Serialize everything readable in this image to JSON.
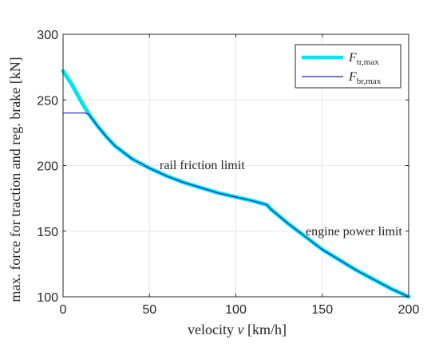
{
  "chart_data": {
    "type": "line",
    "title": "",
    "xlabel": "velocity v [km/h]",
    "ylabel": "max. force for traction and reg. brake [kN]",
    "xlim": [
      0,
      200
    ],
    "ylim": [
      100,
      300
    ],
    "xticks": [
      "0",
      "50",
      "100",
      "150",
      "200"
    ],
    "yticks": [
      "100",
      "150",
      "200",
      "250",
      "300"
    ],
    "grid": true,
    "legend_position": "top-right",
    "series": [
      {
        "name": "F_tr,max",
        "color": "#00e5ee",
        "points": [
          [
            0,
            272
          ],
          [
            5,
            262
          ],
          [
            10,
            250
          ],
          [
            15,
            239
          ],
          [
            20,
            230
          ],
          [
            25,
            222
          ],
          [
            30,
            215
          ],
          [
            40,
            205
          ],
          [
            50,
            198
          ],
          [
            60,
            192
          ],
          [
            70,
            187
          ],
          [
            80,
            183
          ],
          [
            90,
            179
          ],
          [
            100,
            176
          ],
          [
            110,
            173
          ],
          [
            118,
            170
          ],
          [
            120,
            167
          ],
          [
            130,
            156
          ],
          [
            140,
            146
          ],
          [
            150,
            136
          ],
          [
            160,
            128
          ],
          [
            170,
            120
          ],
          [
            180,
            113
          ],
          [
            190,
            106
          ],
          [
            200,
            100
          ]
        ]
      },
      {
        "name": "F_br,max",
        "color": "#1f1fbf",
        "points": [
          [
            0,
            240
          ],
          [
            13,
            240
          ],
          [
            15,
            239
          ],
          [
            20,
            230
          ],
          [
            25,
            222
          ],
          [
            30,
            215
          ],
          [
            40,
            205
          ],
          [
            50,
            198
          ],
          [
            60,
            192
          ],
          [
            70,
            187
          ],
          [
            80,
            183
          ],
          [
            90,
            179
          ],
          [
            100,
            176
          ],
          [
            110,
            173
          ],
          [
            118,
            170
          ],
          [
            120,
            167
          ],
          [
            130,
            156
          ],
          [
            140,
            146
          ],
          [
            150,
            136
          ],
          [
            160,
            128
          ],
          [
            170,
            120
          ],
          [
            180,
            113
          ],
          [
            190,
            106
          ],
          [
            200,
            100
          ]
        ]
      }
    ],
    "legend": [
      {
        "base": "F",
        "sub": "tr,max"
      },
      {
        "base": "F",
        "sub": "br,max"
      }
    ],
    "annotations": [
      {
        "text": "rail friction limit",
        "x": 55,
        "y": 200
      },
      {
        "text": "engine power limit",
        "x": 140,
        "y": 148
      }
    ]
  }
}
